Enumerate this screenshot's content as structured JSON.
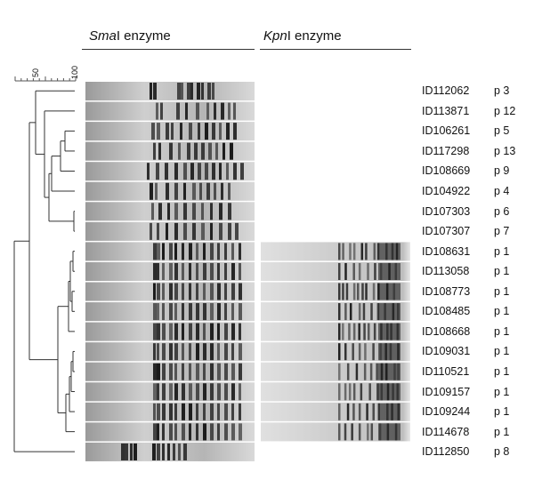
{
  "headers": {
    "smai": {
      "italic": "Sma",
      "rest": "I enzyme"
    },
    "kpni": {
      "italic": "Kpn",
      "rest": "I enzyme"
    }
  },
  "scale": {
    "ticks": [
      "50",
      "100"
    ]
  },
  "isolates": [
    {
      "id": "ID112062",
      "pattern": "p 3",
      "kpn": false
    },
    {
      "id": "ID113871",
      "pattern": "p 12",
      "kpn": false
    },
    {
      "id": "ID106261",
      "pattern": "p 5",
      "kpn": false
    },
    {
      "id": "ID117298",
      "pattern": "p 13",
      "kpn": false
    },
    {
      "id": "ID108669",
      "pattern": "p 9",
      "kpn": false
    },
    {
      "id": "ID104922",
      "pattern": "p 4",
      "kpn": false
    },
    {
      "id": "ID107303",
      "pattern": "p 6",
      "kpn": false
    },
    {
      "id": "ID107307",
      "pattern": "p 7",
      "kpn": false
    },
    {
      "id": "ID108631",
      "pattern": "p 1",
      "kpn": true
    },
    {
      "id": "ID113058",
      "pattern": "p 1",
      "kpn": true
    },
    {
      "id": "ID108773",
      "pattern": "p 1",
      "kpn": true
    },
    {
      "id": "ID108485",
      "pattern": "p 1",
      "kpn": true
    },
    {
      "id": "ID108668",
      "pattern": "p 1",
      "kpn": true
    },
    {
      "id": "ID109031",
      "pattern": "p 1",
      "kpn": true
    },
    {
      "id": "ID110521",
      "pattern": "p 1",
      "kpn": true
    },
    {
      "id": "ID109157",
      "pattern": "p 1",
      "kpn": true
    },
    {
      "id": "ID109244",
      "pattern": "p 1",
      "kpn": true
    },
    {
      "id": "ID114678",
      "pattern": "p 1",
      "kpn": true
    },
    {
      "id": "ID112850",
      "pattern": "p 8",
      "kpn": false
    }
  ]
}
